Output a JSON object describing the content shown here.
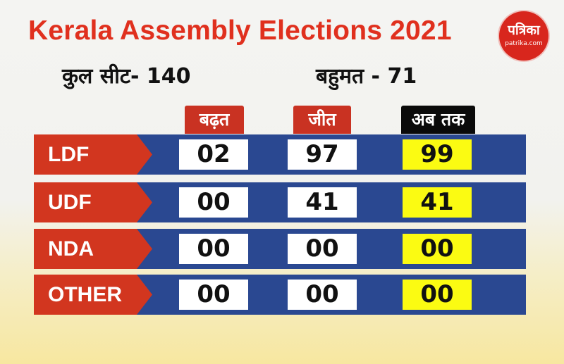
{
  "title": "Kerala Assembly Elections 2021",
  "logo": {
    "name": "पत्रिका",
    "domain": "patrika.com"
  },
  "total_seats_label": "कुल सीट- 140",
  "majority_label": "बहुमत - 71",
  "columns": {
    "leading": "बढ़त",
    "won": "जीत",
    "total": "अब तक"
  },
  "rows": [
    {
      "party": "LDF",
      "leading": "02",
      "won": "97",
      "total": "99"
    },
    {
      "party": "UDF",
      "leading": "00",
      "won": "41",
      "total": "41"
    },
    {
      "party": "NDA",
      "leading": "00",
      "won": "00",
      "total": "00"
    },
    {
      "party": "OTHER",
      "leading": "00",
      "won": "00",
      "total": "00"
    }
  ],
  "colors": {
    "title": "#e0301e",
    "row": "#2a4891",
    "party_tag": "#d2361f",
    "total_cell": "#fbfb12"
  }
}
